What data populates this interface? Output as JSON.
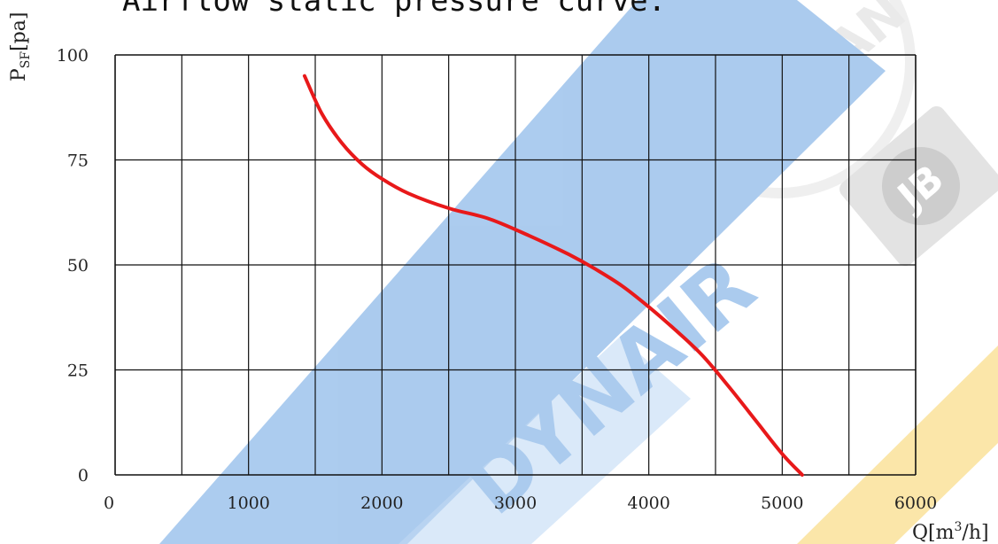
{
  "chart_data": {
    "type": "line",
    "title": "Airflow static pressure curve:",
    "xlabel": {
      "main": "Q",
      "unit_open": "[m",
      "unit_sup": "3",
      "unit_close": "/h]"
    },
    "ylabel": {
      "main": "P",
      "sub": "SF",
      "unit": "[pa]"
    },
    "xlim": [
      0,
      6000
    ],
    "ylim": [
      0,
      100
    ],
    "x_ticks": [
      0,
      1000,
      2000,
      3000,
      4000,
      5000,
      6000
    ],
    "y_ticks": [
      0,
      25,
      50,
      75,
      100
    ],
    "x_tick_labels": [
      "0",
      "1000",
      "2000",
      "3000",
      "4000",
      "5000",
      "6000"
    ],
    "y_tick_labels": [
      "0",
      "25",
      "50",
      "75",
      "100"
    ],
    "grid": true,
    "x_minor_step": 500,
    "series": [
      {
        "color": "#e8191a",
        "x": [
          1420,
          1550,
          1700,
          1850,
          2000,
          2200,
          2500,
          2800,
          3100,
          3400,
          3600,
          3800,
          4000,
          4200,
          4400,
          4600,
          4800,
          5000,
          5150
        ],
        "y": [
          95,
          86,
          79,
          74,
          70.5,
          67,
          63.5,
          61,
          57,
          52.5,
          49,
          45,
          40,
          34.5,
          28.5,
          21,
          13,
          5,
          0
        ]
      }
    ]
  },
  "watermarks": {
    "ring_text": "DAYAN",
    "diagonal_text": "DYNAIR",
    "badge_text": "JB",
    "primary_color": "#3a86d8",
    "secondary_color": "#f2b400"
  }
}
